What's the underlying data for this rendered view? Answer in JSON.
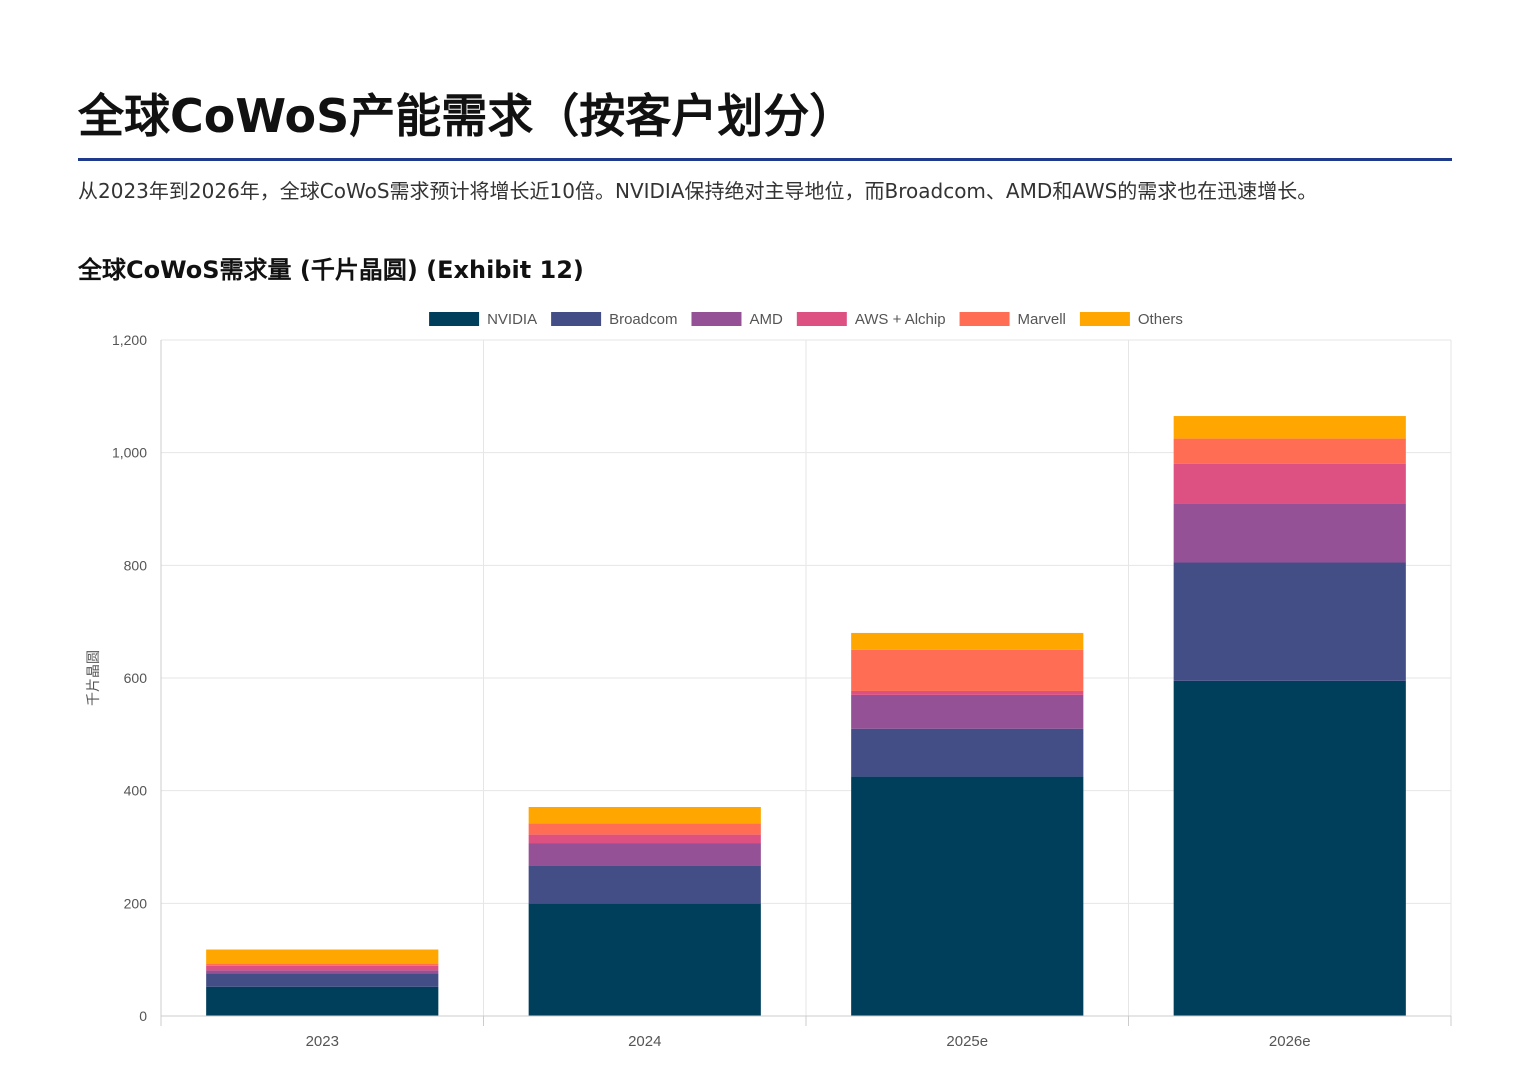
{
  "header": {
    "title": "全球CoWoS产能需求（按客户划分）",
    "subtitle": "从2023年到2026年，全球CoWoS需求预计将增长近10倍。NVIDIA保持绝对主导地位，而Broadcom、AMD和AWS的需求也在迅速增长。"
  },
  "chart_data": {
    "type": "bar",
    "stacked": true,
    "title": "全球CoWoS需求量 (千片晶圆) (Exhibit 12)",
    "xlabel": "",
    "ylabel": "千片晶圆",
    "categories": [
      "2023",
      "2024",
      "2025e",
      "2026e"
    ],
    "ylim": [
      0,
      1200
    ],
    "yticks": [
      0,
      200,
      400,
      600,
      800,
      1000,
      1200
    ],
    "ytick_labels": [
      "0",
      "200",
      "400",
      "600",
      "800",
      "1,000",
      "1,200"
    ],
    "grid": true,
    "legend_position": "top-center",
    "series": [
      {
        "name": "NVIDIA",
        "color": "#003f5c",
        "values": [
          52,
          200,
          425,
          595
        ]
      },
      {
        "name": "Broadcom",
        "color": "#444e86",
        "values": [
          24,
          67,
          85,
          210
        ]
      },
      {
        "name": "AMD",
        "color": "#955196",
        "values": [
          5,
          40,
          60,
          105
        ]
      },
      {
        "name": "AWS + Alchip",
        "color": "#dd5182",
        "values": [
          8,
          15,
          7,
          70
        ]
      },
      {
        "name": "Marvell",
        "color": "#ff6e54",
        "values": [
          4,
          20,
          73,
          45
        ]
      },
      {
        "name": "Others",
        "color": "#ffa600",
        "values": [
          25,
          29,
          30,
          40
        ]
      }
    ]
  }
}
